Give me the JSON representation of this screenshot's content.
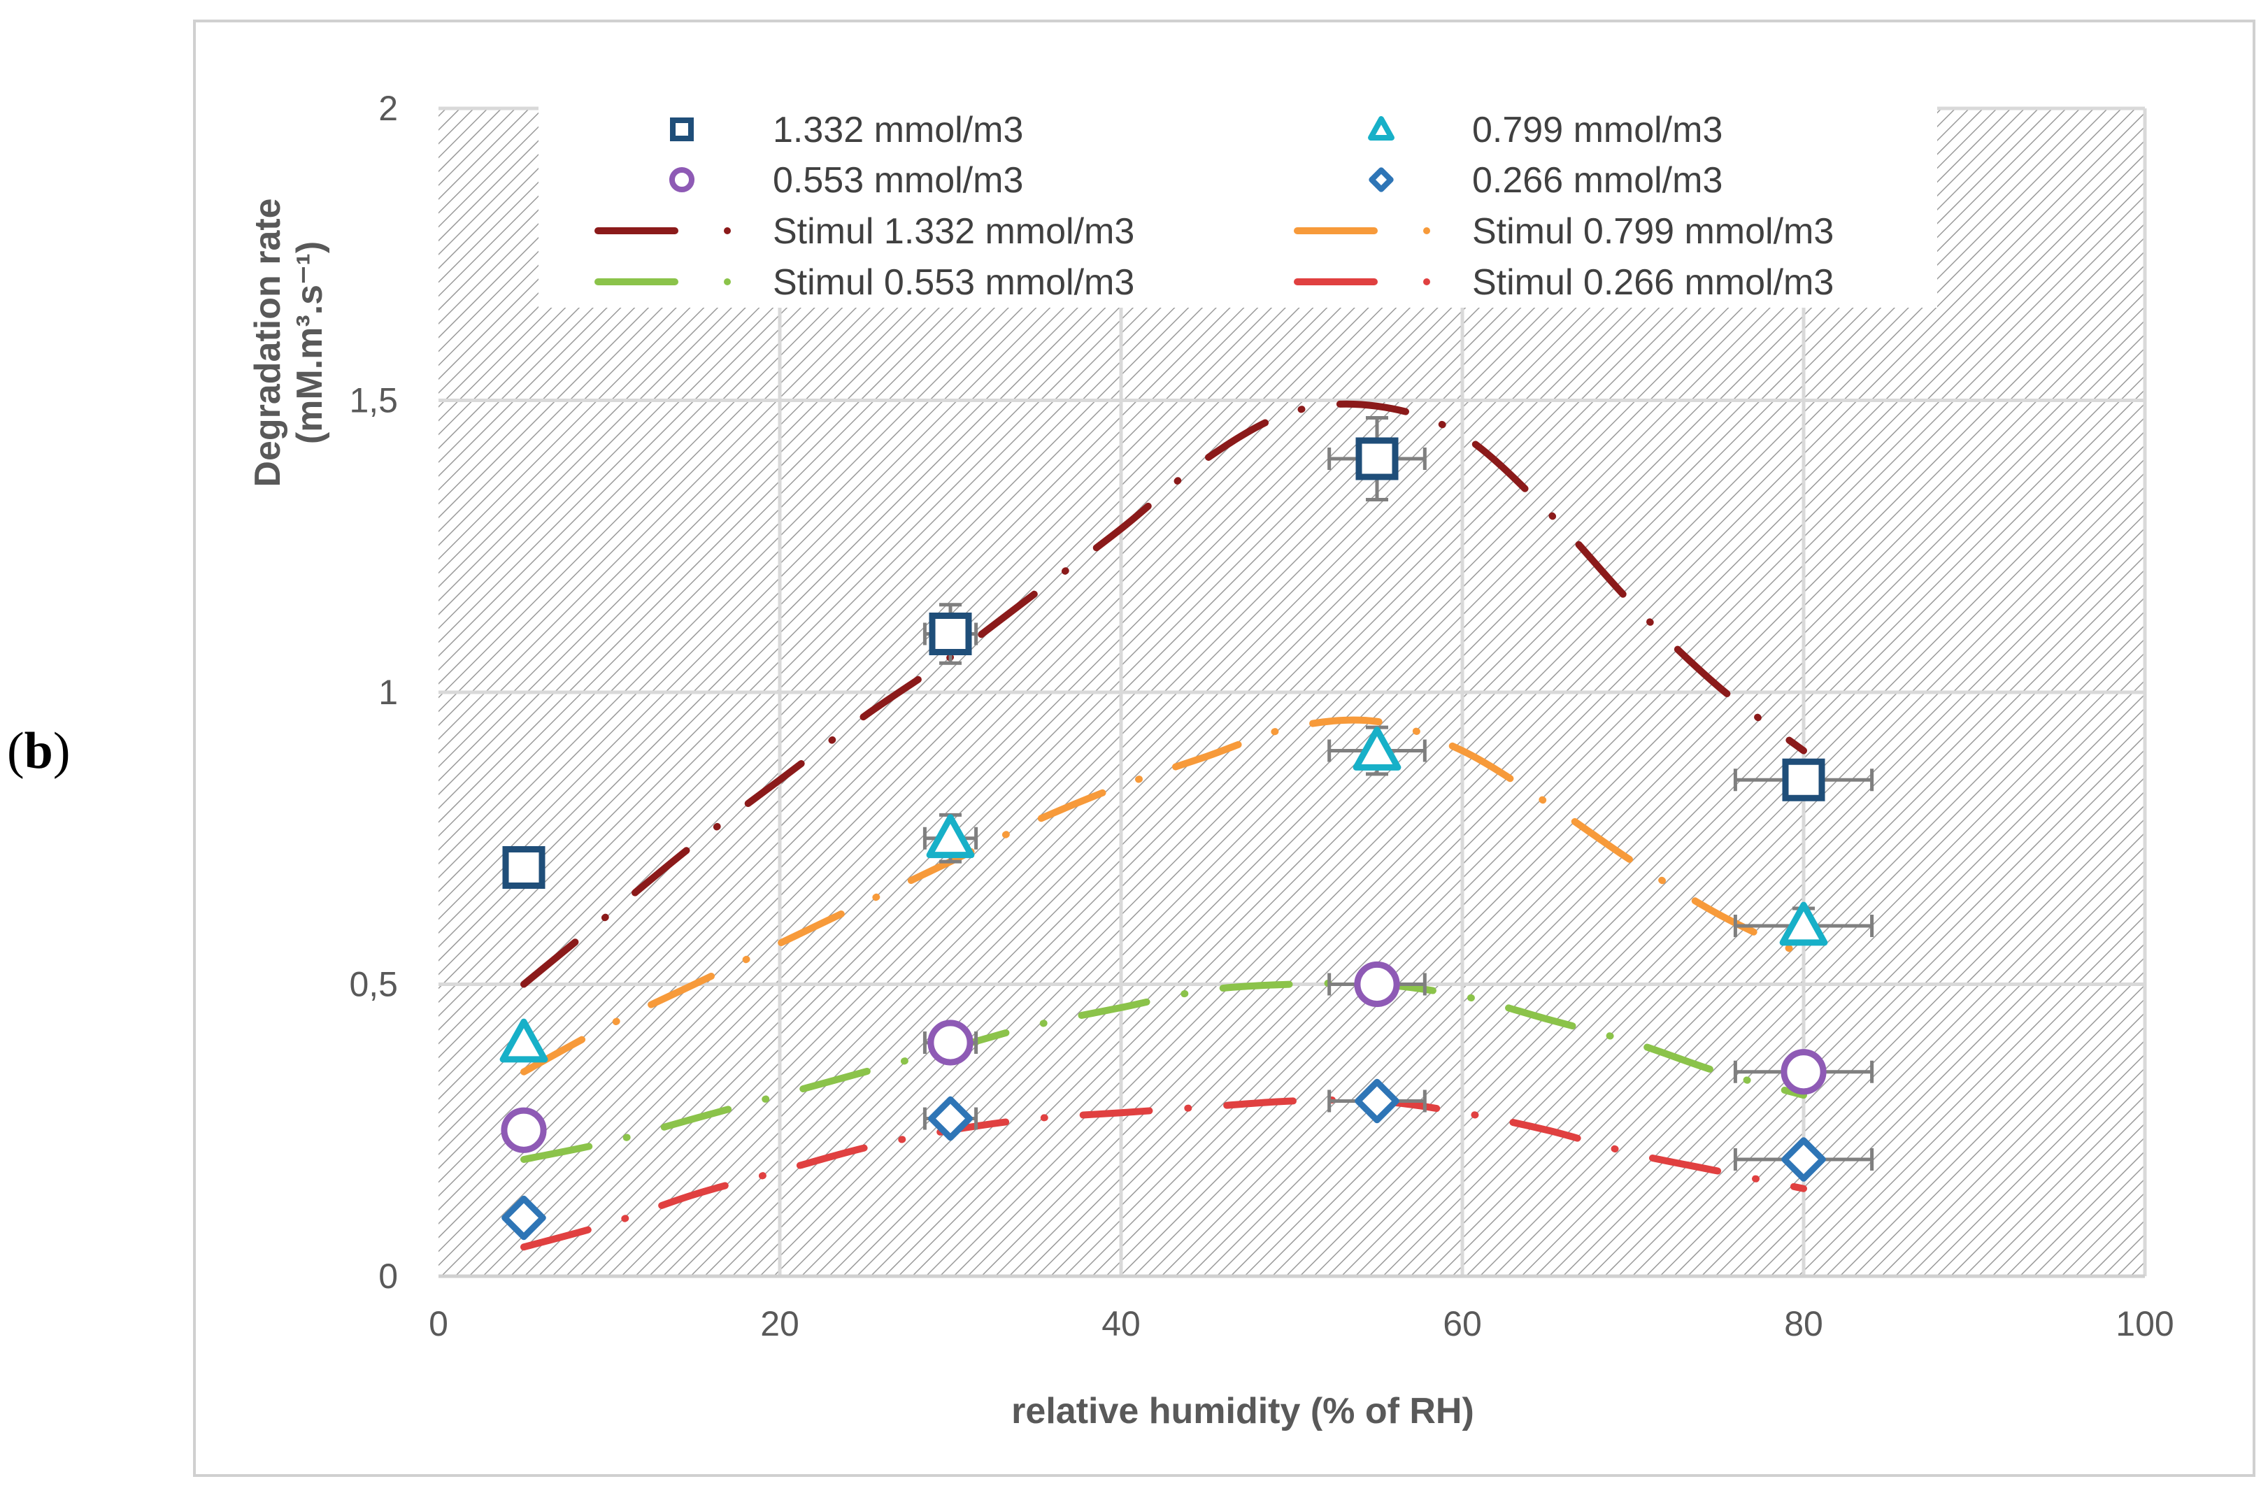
{
  "panel_label_open": "(",
  "panel_label_letter": "b",
  "panel_label_close": ")",
  "chart_data": {
    "type": "scatter",
    "xlabel": "relative humidity (% of RH)",
    "ylabel_line1": "Degradation rate",
    "ylabel_line2": "(mM.m³.s⁻¹)",
    "xlim": [
      0,
      100
    ],
    "ylim": [
      0,
      2
    ],
    "x_ticks": [
      0,
      20,
      40,
      60,
      80,
      100
    ],
    "x_tick_labels": [
      "0",
      "20",
      "40",
      "60",
      "80",
      "100"
    ],
    "y_ticks": [
      0,
      0.5,
      1,
      1.5,
      2
    ],
    "y_tick_labels": [
      "0",
      "0,5",
      "1",
      "1,5",
      "2"
    ],
    "grid": true,
    "legend_position": "top",
    "markers": [
      {
        "name": "1.332 mmol/m3",
        "symbol": "square",
        "color": "#1f4e79",
        "x": [
          5,
          30,
          55,
          80
        ],
        "y": [
          0.7,
          1.1,
          1.4,
          0.85
        ],
        "yerr": [
          0,
          0.05,
          0.07,
          0
        ],
        "xerr": [
          0,
          1.5,
          2.8,
          4.0
        ]
      },
      {
        "name": "0.799 mmol/m3",
        "symbol": "triangle",
        "color": "#17b0c8",
        "x": [
          5,
          30,
          55,
          80
        ],
        "y": [
          0.4,
          0.75,
          0.9,
          0.6
        ],
        "yerr": [
          0,
          0.04,
          0.04,
          0.03
        ],
        "xerr": [
          0,
          1.5,
          2.8,
          4.0
        ]
      },
      {
        "name": "0.553 mmol/m3",
        "symbol": "circle",
        "color": "#8e5ab5",
        "x": [
          5,
          30,
          55,
          80
        ],
        "y": [
          0.25,
          0.4,
          0.5,
          0.35
        ],
        "yerr": [
          0,
          0,
          0,
          0
        ],
        "xerr": [
          0,
          1.5,
          2.8,
          4.0
        ]
      },
      {
        "name": "0.266 mmol/m3",
        "symbol": "diamond",
        "color": "#2e75b6",
        "x": [
          5,
          30,
          55,
          80
        ],
        "y": [
          0.1,
          0.27,
          0.3,
          0.2
        ],
        "yerr": [
          0,
          0,
          0,
          0
        ],
        "xerr": [
          0,
          1.5,
          2.8,
          4.0
        ]
      }
    ],
    "curves": [
      {
        "name": "Stimul 1.332 mmol/m3",
        "color": "#8b1a1a",
        "x": [
          5,
          10,
          15,
          20,
          25,
          30,
          35,
          40,
          45,
          50,
          55,
          60,
          65,
          70,
          75,
          80
        ],
        "y": [
          0.5,
          0.62,
          0.74,
          0.85,
          0.96,
          1.06,
          1.17,
          1.28,
          1.4,
          1.48,
          1.49,
          1.44,
          1.31,
          1.15,
          1.01,
          0.9
        ]
      },
      {
        "name": "Stimul 0.799 mmol/m3",
        "color": "#f79a3a",
        "x": [
          5,
          10,
          15,
          20,
          25,
          30,
          35,
          40,
          45,
          50,
          55,
          60,
          65,
          70,
          75,
          80
        ],
        "y": [
          0.35,
          0.43,
          0.5,
          0.57,
          0.64,
          0.71,
          0.78,
          0.84,
          0.89,
          0.94,
          0.95,
          0.9,
          0.81,
          0.71,
          0.62,
          0.55
        ]
      },
      {
        "name": "Stimul 0.553 mmol/m3",
        "color": "#8bc34a",
        "x": [
          5,
          10,
          15,
          20,
          25,
          30,
          35,
          40,
          45,
          50,
          55,
          60,
          65,
          70,
          75,
          80
        ],
        "y": [
          0.2,
          0.23,
          0.27,
          0.31,
          0.35,
          0.39,
          0.43,
          0.46,
          0.49,
          0.5,
          0.5,
          0.48,
          0.44,
          0.4,
          0.35,
          0.31
        ]
      },
      {
        "name": "Stimul 0.266 mmol/m3",
        "color": "#e04040",
        "x": [
          5,
          10,
          15,
          20,
          25,
          30,
          35,
          40,
          45,
          50,
          55,
          60,
          65,
          70,
          75,
          80
        ],
        "y": [
          0.05,
          0.09,
          0.14,
          0.18,
          0.22,
          0.25,
          0.27,
          0.28,
          0.29,
          0.3,
          0.3,
          0.28,
          0.25,
          0.21,
          0.18,
          0.15
        ]
      }
    ]
  }
}
